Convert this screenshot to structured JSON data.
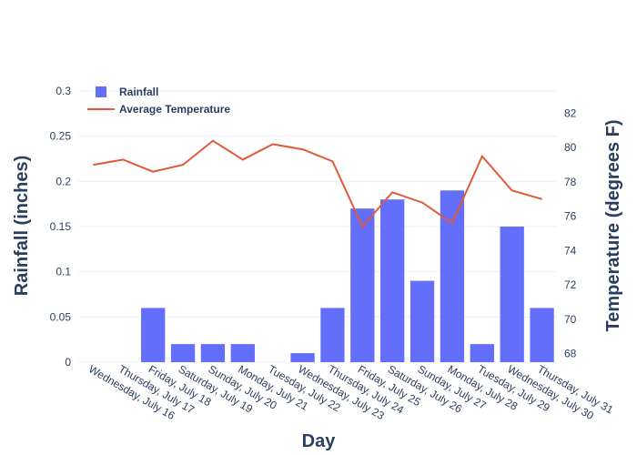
{
  "chart_data": {
    "type": "bar",
    "categories": [
      "Wednesday, July 16",
      "Thursday, July 17",
      "Friday, July 18",
      "Saturday, July 19",
      "Sunday, July 20",
      "Monday, July 21",
      "Tuesday, July 22",
      "Wednesday, July 23",
      "Thursday, July 24",
      "Friday, July 25",
      "Saturday, July 26",
      "Sunday, July 27",
      "Monday, July 28",
      "Tuesday, July 29",
      "Wednesday, July 30",
      "Thursday, July 31"
    ],
    "series": [
      {
        "name": "Rainfall",
        "type": "bar",
        "axis": "y",
        "color": "#636efa",
        "values": [
          0,
          0,
          0.06,
          0.02,
          0.02,
          0.02,
          0,
          0.01,
          0.06,
          0.17,
          0.18,
          0.09,
          0.19,
          0.02,
          0.15,
          0.06
        ]
      },
      {
        "name": "Average Temperature",
        "type": "line",
        "axis": "y2",
        "color": "#e05a3c",
        "values": [
          79.0,
          79.3,
          78.6,
          79.0,
          80.4,
          79.3,
          80.2,
          79.9,
          79.2,
          75.4,
          77.4,
          76.8,
          75.6,
          79.5,
          77.5,
          77.0
        ]
      }
    ],
    "xlabel": "Day",
    "ylabel": "Rainfall (inches)",
    "y2label": "Temperature (degrees F)",
    "ylim": [
      0,
      0.3
    ],
    "y2lim": [
      67.5,
      83.3
    ],
    "yticks": [
      "0",
      "0.05",
      "0.1",
      "0.15",
      "0.2",
      "0.25",
      "0.3"
    ],
    "y2ticks": [
      "68",
      "70",
      "72",
      "74",
      "76",
      "78",
      "80",
      "82"
    ],
    "grid": true,
    "legend_position": "top-left"
  }
}
